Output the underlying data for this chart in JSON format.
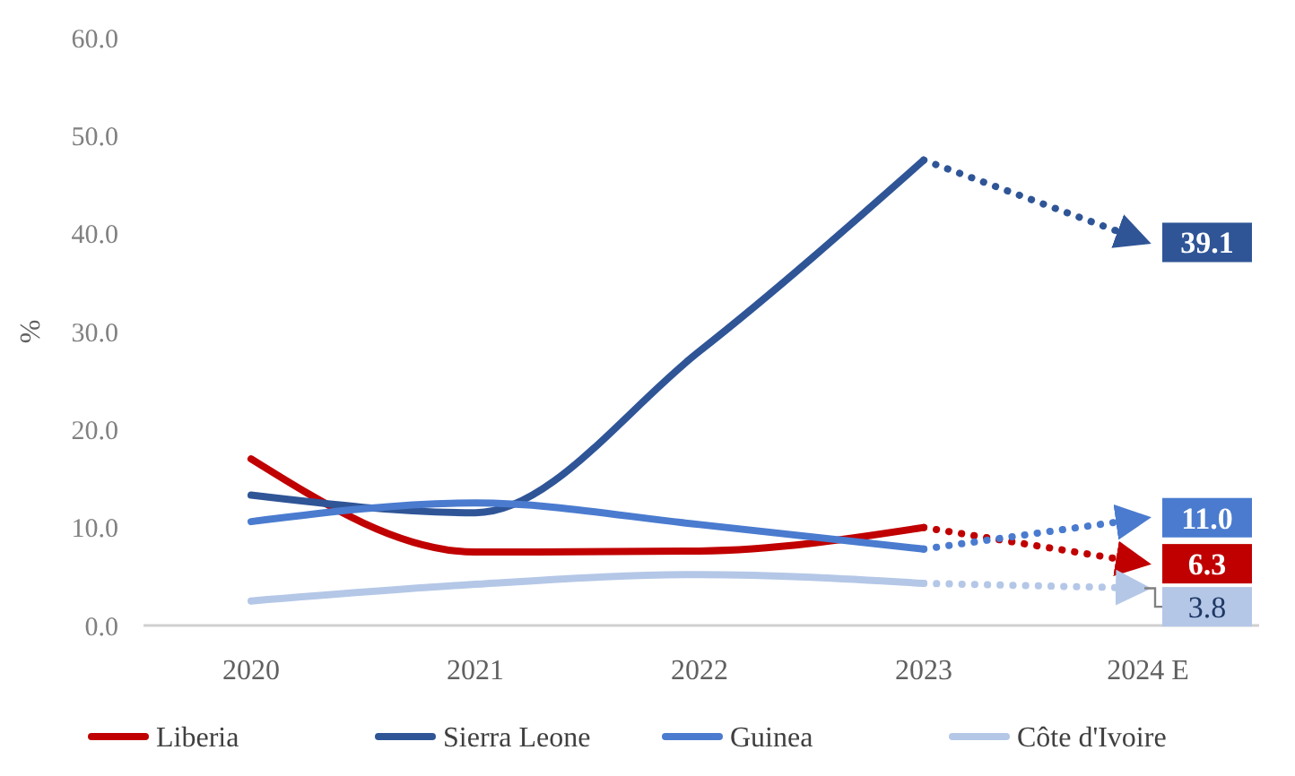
{
  "chart_data": {
    "type": "line",
    "ylabel": "%",
    "categories": [
      "2020",
      "2021",
      "2022",
      "2023",
      "2024 E"
    ],
    "ylim": [
      0,
      60
    ],
    "yticks": [
      {
        "value": 0,
        "label": "0.0"
      },
      {
        "value": 10,
        "label": "10.0"
      },
      {
        "value": 20,
        "label": "20.0"
      },
      {
        "value": 30,
        "label": "30.0"
      },
      {
        "value": 40,
        "label": "40.0"
      },
      {
        "value": 50,
        "label": "50.0"
      },
      {
        "value": 60,
        "label": "60.0"
      }
    ],
    "grid": false,
    "legend": "bottom",
    "series": [
      {
        "name": "Liberia",
        "color": "#c00000",
        "values": [
          17.0,
          7.5,
          7.6,
          10.0,
          null
        ],
        "line_style": "solid"
      },
      {
        "name": "Sierra Leone",
        "color": "#2f5597",
        "values": [
          13.3,
          11.5,
          28.0,
          47.5,
          null
        ],
        "line_style": "solid"
      },
      {
        "name": "Guinea",
        "color": "#4a7bcf",
        "values": [
          10.6,
          12.5,
          10.3,
          7.8,
          null
        ],
        "line_style": "solid"
      },
      {
        "name": "Côte d'Ivoire",
        "color": "#b4c7e7",
        "values": [
          2.5,
          4.2,
          5.2,
          4.3,
          null
        ],
        "line_style": "solid"
      },
      {
        "color": "#c00000",
        "values": [
          null,
          null,
          null,
          10.0,
          6.3
        ],
        "line_style": "dotted",
        "value_labels": [
          null,
          null,
          null,
          null,
          "6.3"
        ]
      },
      {
        "color": "#2f5597",
        "values": [
          null,
          null,
          null,
          47.5,
          39.1
        ],
        "line_style": "dotted",
        "value_labels": [
          null,
          null,
          null,
          null,
          "39.1"
        ]
      },
      {
        "color": "#4a7bcf",
        "values": [
          null,
          null,
          null,
          7.8,
          11.0
        ],
        "line_style": "dotted",
        "value_labels": [
          null,
          null,
          null,
          null,
          "11.0"
        ]
      },
      {
        "color": "#b4c7e7",
        "values": [
          null,
          null,
          null,
          4.3,
          3.8
        ],
        "line_style": "dotted",
        "value_labels": [
          null,
          null,
          null,
          null,
          "3.8"
        ]
      }
    ]
  }
}
